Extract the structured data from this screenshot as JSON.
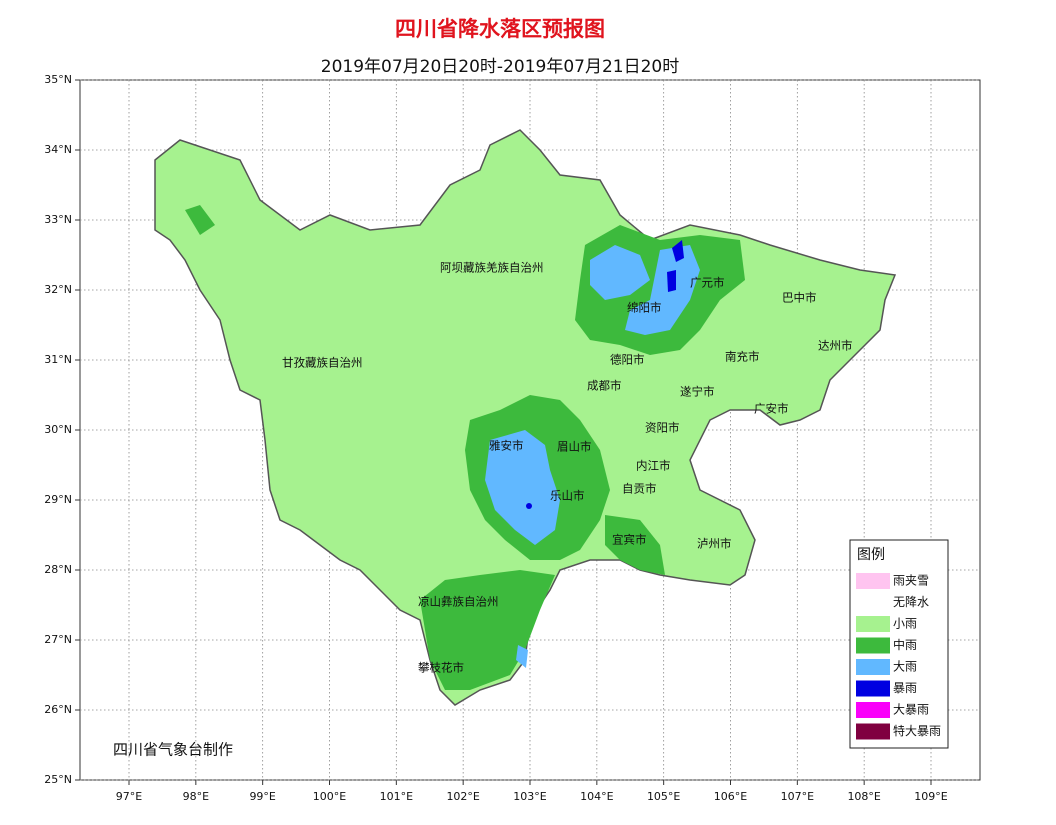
{
  "header": {
    "title": "四川省降水落区预报图",
    "subtitle": "2019年07月20日20时-2019年07月21日20时"
  },
  "map": {
    "lon_ticks": [
      {
        "value": 97,
        "label": "97°E"
      },
      {
        "value": 98,
        "label": "98°E"
      },
      {
        "value": 99,
        "label": "99°E"
      },
      {
        "value": 100,
        "label": "100°E"
      },
      {
        "value": 101,
        "label": "101°E"
      },
      {
        "value": 102,
        "label": "102°E"
      },
      {
        "value": 103,
        "label": "103°E"
      },
      {
        "value": 104,
        "label": "104°E"
      },
      {
        "value": 105,
        "label": "105°E"
      },
      {
        "value": 106,
        "label": "106°E"
      },
      {
        "value": 107,
        "label": "107°E"
      },
      {
        "value": 108,
        "label": "108°E"
      },
      {
        "value": 109,
        "label": "109°E"
      }
    ],
    "lat_ticks": [
      {
        "value": 25,
        "label": "25°N"
      },
      {
        "value": 26,
        "label": "26°N"
      },
      {
        "value": 27,
        "label": "27°N"
      },
      {
        "value": 28,
        "label": "28°N"
      },
      {
        "value": 29,
        "label": "29°N"
      },
      {
        "value": 30,
        "label": "30°N"
      },
      {
        "value": 31,
        "label": "31°N"
      },
      {
        "value": 32,
        "label": "32°N"
      },
      {
        "value": 33,
        "label": "33°N"
      },
      {
        "value": 34,
        "label": "34°N"
      },
      {
        "value": 35,
        "label": "35°N"
      }
    ],
    "places": [
      "阿坝藏族羌族自治州",
      "甘孜藏族自治州",
      "绵阳市",
      "广元市",
      "巴中市",
      "达州市",
      "德阳市",
      "南充市",
      "成都市",
      "遂宁市",
      "广安市",
      "资阳市",
      "雅安市",
      "眉山市",
      "内江市",
      "自贡市",
      "乐山市",
      "宜宾市",
      "泸州市",
      "凉山彝族自治州",
      "攀枝花市"
    ]
  },
  "legend": {
    "title": "图例",
    "items": [
      {
        "label": "雨夹雪",
        "color": "#ffc4f0"
      },
      {
        "label": "无降水",
        "color": "#ffffff"
      },
      {
        "label": "小雨",
        "color": "#a6f28f"
      },
      {
        "label": "中雨",
        "color": "#3dba3d"
      },
      {
        "label": "大雨",
        "color": "#61b8ff"
      },
      {
        "label": "暴雨",
        "color": "#0000e1"
      },
      {
        "label": "大暴雨",
        "color": "#fa00fa"
      },
      {
        "label": "特大暴雨",
        "color": "#800040"
      }
    ]
  },
  "credit": "四川省气象台制作"
}
